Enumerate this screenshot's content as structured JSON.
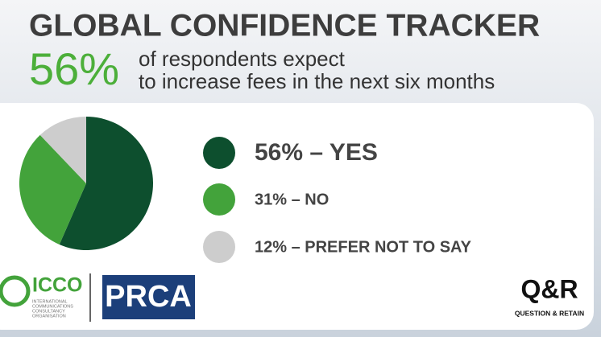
{
  "chart_data": {
    "type": "pie",
    "title": "GLOBAL CONFIDENCE TRACKER",
    "highlight": "56%",
    "subtitle": [
      "of respondents expect",
      "to increase fees in the next six months"
    ],
    "categories": [
      "56% – YES",
      "31% – NO",
      "12% – PREFER NOT TO SAY"
    ],
    "values": [
      56,
      31,
      12
    ],
    "colors": [
      "#0d4f2e",
      "#43a33b",
      "#cdcdcd"
    ]
  },
  "logos": {
    "icco": "ICCO",
    "icco_lines": [
      "INTERNATIONAL",
      "COMMUNICATIONS",
      "CONSULTANCY",
      "ORGANISATION"
    ],
    "prca": "PRCA",
    "qr": "Q&R",
    "qr_tagline": "QUESTION & RETAIN"
  }
}
